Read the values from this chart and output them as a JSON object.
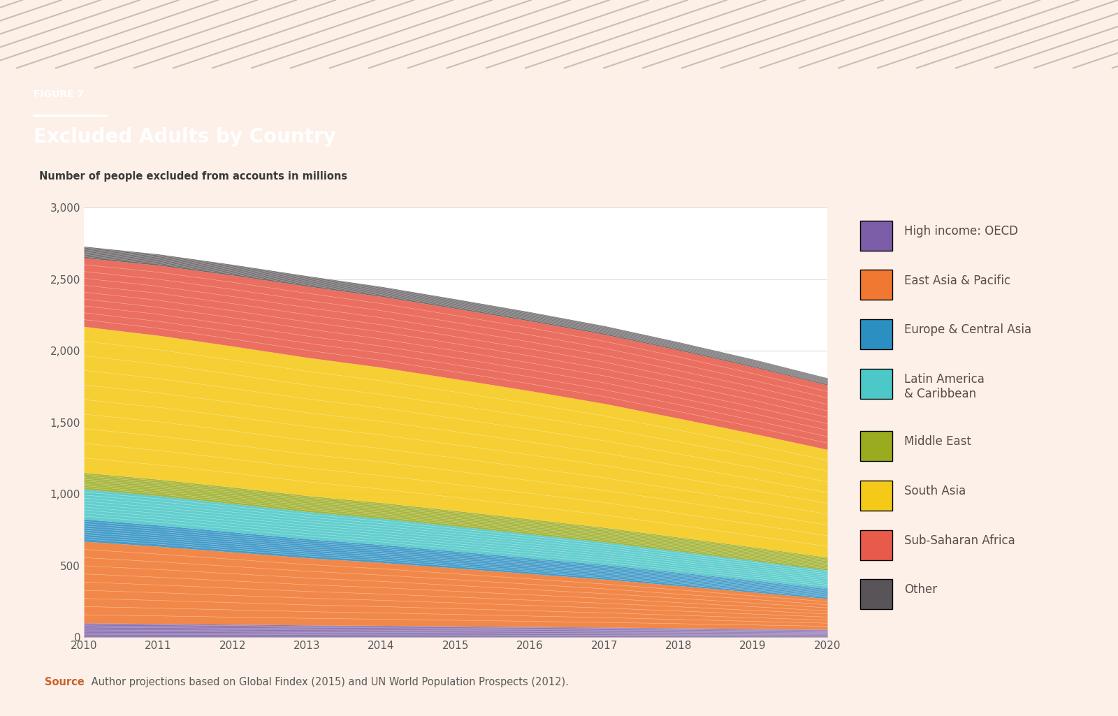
{
  "title": "FIGURE 7",
  "subtitle": "Excluded Adults by Country",
  "ylabel": "Number of people excluded from accounts in millions",
  "source_bold": "Source",
  "source_rest": " Author projections based on Global Findex (2015) and UN World Population Prospects (2012).",
  "years": [
    2010,
    2011,
    2012,
    2013,
    2014,
    2015,
    2016,
    2017,
    2018,
    2019,
    2020
  ],
  "header_bg": "#6b5555",
  "chart_bg": "#fdf0e8",
  "plot_bg": "#ffffff",
  "stacks": [
    {
      "name": "High income: OECD",
      "color": "#7b5ea7",
      "values": [
        100,
        95,
        90,
        85,
        82,
        78,
        74,
        70,
        65,
        60,
        55
      ]
    },
    {
      "name": "East Asia & Pacific",
      "color": "#f07830",
      "values": [
        570,
        540,
        505,
        470,
        440,
        405,
        370,
        335,
        295,
        255,
        215
      ]
    },
    {
      "name": "Europe & Central Asia",
      "color": "#2b8fc2",
      "values": [
        155,
        148,
        140,
        132,
        125,
        118,
        110,
        102,
        93,
        84,
        74
      ]
    },
    {
      "name": "Latin America\n& Caribbean",
      "color": "#4dc8c8",
      "values": [
        210,
        205,
        198,
        190,
        183,
        175,
        167,
        158,
        148,
        137,
        125
      ]
    },
    {
      "name": "Middle East",
      "color": "#9aab20",
      "values": [
        115,
        115,
        115,
        112,
        110,
        108,
        105,
        102,
        98,
        94,
        90
      ]
    },
    {
      "name": "South Asia",
      "color": "#f5c918",
      "values": [
        1020,
        1005,
        985,
        965,
        945,
        920,
        895,
        865,
        830,
        793,
        752
      ]
    },
    {
      "name": "Sub-Saharan Africa",
      "color": "#e85b4a",
      "values": [
        480,
        490,
        495,
        498,
        495,
        492,
        488,
        483,
        476,
        465,
        450
      ]
    },
    {
      "name": "Other",
      "color": "#595457",
      "values": [
        80,
        78,
        75,
        72,
        69,
        66,
        63,
        60,
        57,
        54,
        50
      ]
    }
  ],
  "ylim": [
    0,
    3000
  ],
  "yticks": [
    0,
    500,
    1000,
    1500,
    2000,
    2500,
    3000
  ],
  "stripe_color": "#b8a898",
  "underline_color": "#c8622a",
  "source_color": "#c8622a",
  "text_color": "#5a4a4a"
}
